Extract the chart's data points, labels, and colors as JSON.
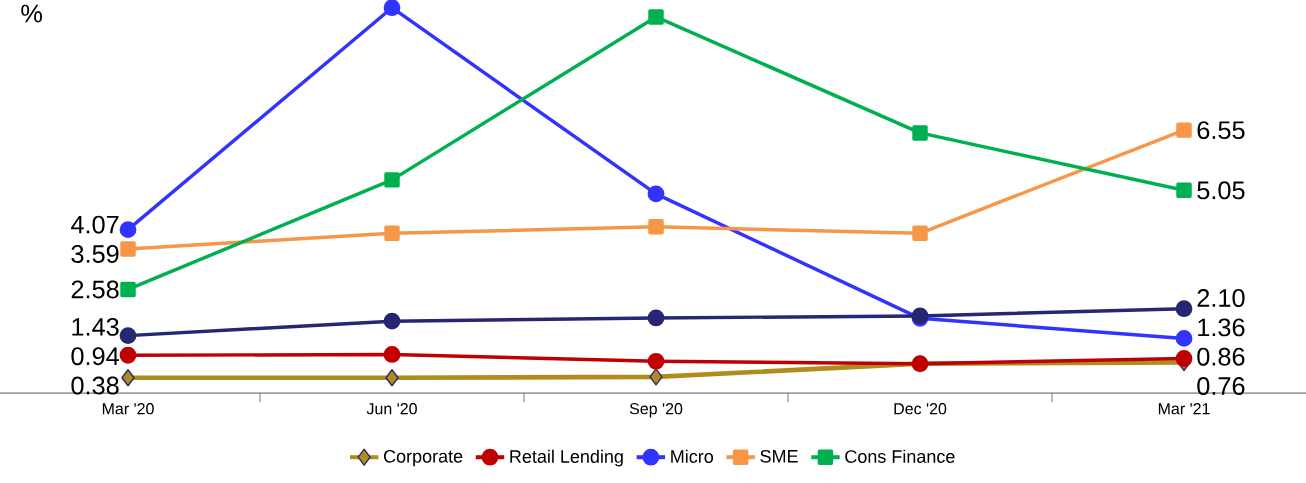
{
  "chart_data": {
    "type": "line",
    "ylabel": "%",
    "legend": "bottom",
    "categories": [
      "Mar '20",
      "Jun '20",
      "Sep '20",
      "Dec '20",
      "Mar '21"
    ],
    "series": [
      {
        "name": "Corporate",
        "color": "#b08d1a",
        "marker": "diamond",
        "values": [
          0.38,
          0.38,
          0.4,
          0.73,
          0.76
        ],
        "value_labels": [
          "0.38",
          null,
          null,
          null,
          "0.76"
        ]
      },
      {
        "name": "Retail Lending",
        "color": "#c00000",
        "marker": "circle",
        "values": [
          0.94,
          0.96,
          0.79,
          0.73,
          0.86
        ],
        "value_labels": [
          "0.94",
          null,
          null,
          null,
          "0.86"
        ]
      },
      {
        "name": "Micro",
        "color": "#3333ff",
        "marker": "circle",
        "values": [
          4.07,
          9.6,
          4.96,
          1.86,
          1.36
        ],
        "value_labels": [
          "4.07",
          null,
          null,
          null,
          "1.36"
        ]
      },
      {
        "name": "SME",
        "color": "#f79646",
        "marker": "square",
        "values": [
          3.59,
          3.98,
          4.14,
          3.98,
          6.55
        ],
        "value_labels": [
          "3.59",
          null,
          null,
          null,
          "6.55"
        ]
      },
      {
        "name": "Cons Finance",
        "color": "#00b050",
        "marker": "square",
        "values": [
          2.58,
          5.31,
          9.37,
          6.48,
          5.05
        ],
        "value_labels": [
          "2.58",
          null,
          null,
          null,
          "5.05"
        ]
      },
      {
        "color": "#262673",
        "marker": "circle",
        "values": [
          1.43,
          1.79,
          1.87,
          1.92,
          2.1
        ],
        "value_labels": [
          "1.43",
          null,
          null,
          null,
          "2.10"
        ]
      }
    ]
  }
}
